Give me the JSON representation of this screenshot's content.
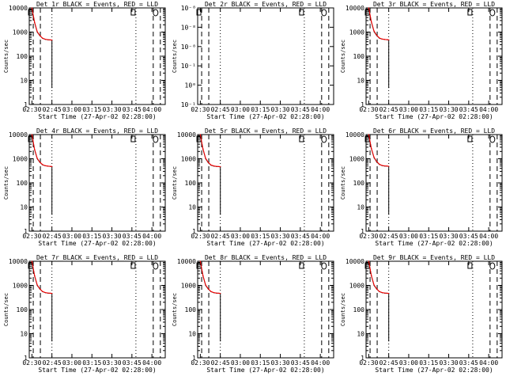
{
  "chart_data": [
    {
      "type": "line",
      "title": "Det 1r BLACK = Events, RED = LLD",
      "xlabel": "Start Time (27-Apr-02 02:28:00)",
      "ylabel": "Counts/sec",
      "x_tick_labels": [
        "02:30",
        "02:45",
        "03:00",
        "03:15",
        "03:30",
        "03:45",
        "04:00"
      ],
      "y_tick_labels": [
        "1",
        "10",
        "100",
        "1000",
        "10000"
      ],
      "y_scale": "log",
      "ylim": [
        1,
        10000
      ],
      "xlim": [
        "02:28",
        "04:10"
      ],
      "series": [
        {
          "name": "BLACK = Events",
          "color": "#000000",
          "x": [
            "02:30",
            "02:32",
            "02:34",
            "02:36",
            "02:38",
            "02:40",
            "02:42",
            "02:44",
            "02:45",
            "02:45"
          ],
          "y": [
            10000,
            2500,
            1000,
            700,
            550,
            500,
            480,
            470,
            460,
            5
          ]
        },
        {
          "name": "RED = LLD",
          "color": "#ff0000",
          "x": [
            "02:30",
            "02:32",
            "02:34",
            "02:36",
            "02:38",
            "02:40",
            "02:42",
            "02:44",
            "02:45"
          ],
          "y": [
            10000,
            2600,
            1050,
            720,
            560,
            505,
            485,
            475,
            465
          ]
        }
      ],
      "markers": [
        "02:31",
        "02:45",
        "03:48",
        "04:01"
      ]
    },
    {
      "type": "line",
      "title": "Det 2r BLACK = Events, RED = LLD",
      "xlabel": "Start Time (27-Apr-02 02:28:00)",
      "ylabel": "Counts/sec",
      "x_tick_labels": [
        "02:30",
        "02:45",
        "03:00",
        "03:15",
        "03:30",
        "03:45",
        "04:00"
      ],
      "y_tick_labels": [
        "10⁻¹",
        "10⁰",
        "10⁻¹",
        "10⁻⁸",
        "10⁻⁸",
        "10⁻⁸"
      ],
      "y_scale": "log",
      "xlim": [
        "02:28",
        "04:10"
      ],
      "series": [],
      "markers": [
        "02:31",
        "02:45",
        "03:48",
        "04:01"
      ]
    },
    {
      "type": "line",
      "title": "Det 3r BLACK = Events, RED = LLD",
      "xlabel": "Start Time (27-Apr-02 02:28:00)",
      "ylabel": "Counts/sec",
      "x_tick_labels": [
        "02:30",
        "02:45",
        "03:00",
        "03:15",
        "03:30",
        "03:45",
        "04:00"
      ],
      "y_tick_labels": [
        "1",
        "10",
        "100",
        "1000",
        "10000"
      ],
      "y_scale": "log",
      "ylim": [
        1,
        10000
      ],
      "xlim": [
        "02:28",
        "04:10"
      ],
      "series": [
        {
          "name": "BLACK = Events",
          "color": "#000000",
          "x": [
            "02:30",
            "02:32",
            "02:34",
            "02:36",
            "02:38",
            "02:40",
            "02:42",
            "02:44",
            "02:45",
            "02:45"
          ],
          "y": [
            10000,
            2600,
            1050,
            720,
            560,
            510,
            490,
            480,
            470,
            5
          ]
        },
        {
          "name": "RED = LLD",
          "color": "#ff0000",
          "x": [
            "02:30",
            "02:32",
            "02:34",
            "02:36",
            "02:38",
            "02:40",
            "02:42",
            "02:44",
            "02:45"
          ],
          "y": [
            10000,
            2700,
            1100,
            740,
            570,
            515,
            495,
            485,
            475
          ]
        }
      ],
      "markers": [
        "02:31",
        "02:45",
        "03:48",
        "04:01"
      ]
    },
    {
      "type": "line",
      "title": "Det 4r BLACK = Events, RED = LLD",
      "xlabel": "Start Time (27-Apr-02 02:28:00)",
      "ylabel": "Counts/sec",
      "x_tick_labels": [
        "02:30",
        "02:45",
        "03:00",
        "03:15",
        "03:30",
        "03:45",
        "04:00"
      ],
      "y_tick_labels": [
        "1",
        "10",
        "100",
        "1000",
        "10000"
      ],
      "y_scale": "log",
      "ylim": [
        1,
        10000
      ],
      "xlim": [
        "02:28",
        "04:10"
      ],
      "series": [
        {
          "name": "BLACK = Events",
          "color": "#000000",
          "x": [
            "02:30",
            "02:32",
            "02:34",
            "02:36",
            "02:38",
            "02:40",
            "02:42",
            "02:44",
            "02:45",
            "02:45"
          ],
          "y": [
            10000,
            2400,
            1000,
            700,
            560,
            510,
            490,
            480,
            470,
            5
          ]
        },
        {
          "name": "RED = LLD",
          "color": "#ff0000",
          "x": [
            "02:30",
            "02:32",
            "02:34",
            "02:36",
            "02:38",
            "02:40",
            "02:42",
            "02:44",
            "02:45"
          ],
          "y": [
            10000,
            2500,
            1050,
            720,
            570,
            515,
            495,
            485,
            475
          ]
        }
      ],
      "markers": [
        "02:31",
        "02:45",
        "03:48",
        "04:01"
      ]
    },
    {
      "type": "line",
      "title": "Det 5r BLACK = Events, RED = LLD",
      "xlabel": "Start Time (27-Apr-02 02:28:00)",
      "ylabel": "Counts/sec",
      "x_tick_labels": [
        "02:30",
        "02:45",
        "03:00",
        "03:15",
        "03:30",
        "03:45",
        "04:00"
      ],
      "y_tick_labels": [
        "1",
        "10",
        "100",
        "1000",
        "10000"
      ],
      "y_scale": "log",
      "ylim": [
        1,
        10000
      ],
      "xlim": [
        "02:28",
        "04:10"
      ],
      "series": [
        {
          "name": "BLACK = Events",
          "color": "#000000",
          "x": [
            "02:30",
            "02:32",
            "02:34",
            "02:36",
            "02:38",
            "02:40",
            "02:42",
            "02:44",
            "02:45",
            "02:45"
          ],
          "y": [
            10000,
            2500,
            1000,
            680,
            540,
            500,
            480,
            470,
            460,
            5
          ]
        },
        {
          "name": "RED = LLD",
          "color": "#ff0000",
          "x": [
            "02:30",
            "02:32",
            "02:34",
            "02:36",
            "02:38",
            "02:40",
            "02:42",
            "02:44",
            "02:45"
          ],
          "y": [
            10000,
            2600,
            1050,
            700,
            550,
            505,
            485,
            475,
            465
          ]
        }
      ],
      "markers": [
        "02:31",
        "02:45",
        "03:48",
        "04:01"
      ]
    },
    {
      "type": "line",
      "title": "Det 6r BLACK = Events, RED = LLD",
      "xlabel": "Start Time (27-Apr-02 02:28:00)",
      "ylabel": "Counts/sec",
      "x_tick_labels": [
        "02:30",
        "02:45",
        "03:00",
        "03:15",
        "03:30",
        "03:45",
        "04:00"
      ],
      "y_tick_labels": [
        "1",
        "10",
        "100",
        "1000",
        "10000"
      ],
      "y_scale": "log",
      "ylim": [
        1,
        10000
      ],
      "xlim": [
        "02:28",
        "04:10"
      ],
      "series": [
        {
          "name": "BLACK = Events",
          "color": "#000000",
          "x": [
            "02:30",
            "02:32",
            "02:34",
            "02:36",
            "02:38",
            "02:40",
            "02:42",
            "02:44",
            "02:45",
            "02:45"
          ],
          "y": [
            10000,
            2600,
            1100,
            740,
            580,
            520,
            500,
            490,
            480,
            5
          ]
        },
        {
          "name": "RED = LLD",
          "color": "#ff0000",
          "x": [
            "02:30",
            "02:32",
            "02:34",
            "02:36",
            "02:38",
            "02:40",
            "02:42",
            "02:44",
            "02:45"
          ],
          "y": [
            10000,
            2700,
            1150,
            760,
            590,
            525,
            505,
            495,
            485
          ]
        }
      ],
      "markers": [
        "02:31",
        "02:45",
        "03:48",
        "04:01"
      ]
    },
    {
      "type": "line",
      "title": "Det 7r BLACK = Events, RED = LLD",
      "xlabel": "Start Time (27-Apr-02 02:28:00)",
      "ylabel": "Counts/sec",
      "x_tick_labels": [
        "02:30",
        "02:45",
        "03:00",
        "03:15",
        "03:30",
        "03:45",
        "04:00"
      ],
      "y_tick_labels": [
        "1",
        "10",
        "100",
        "1000",
        "10000"
      ],
      "y_scale": "log",
      "ylim": [
        1,
        10000
      ],
      "xlim": [
        "02:28",
        "04:10"
      ],
      "series": [
        {
          "name": "BLACK = Events",
          "color": "#000000",
          "x": [
            "02:30",
            "02:32",
            "02:34",
            "02:36",
            "02:38",
            "02:40",
            "02:42",
            "02:44",
            "02:45",
            "02:45"
          ],
          "y": [
            10000,
            2500,
            1000,
            700,
            550,
            500,
            480,
            470,
            460,
            5
          ]
        },
        {
          "name": "RED = LLD",
          "color": "#ff0000",
          "x": [
            "02:30",
            "02:32",
            "02:34",
            "02:36",
            "02:38",
            "02:40",
            "02:42",
            "02:44",
            "02:45"
          ],
          "y": [
            10000,
            2600,
            1050,
            720,
            560,
            505,
            485,
            475,
            465
          ]
        }
      ],
      "markers": [
        "02:31",
        "02:45",
        "03:48",
        "04:01"
      ]
    },
    {
      "type": "line",
      "title": "Det 8r BLACK = Events, RED = LLD",
      "xlabel": "Start Time (27-Apr-02 02:28:00)",
      "ylabel": "Counts/sec",
      "x_tick_labels": [
        "02:30",
        "02:45",
        "03:00",
        "03:15",
        "03:30",
        "03:45",
        "04:00"
      ],
      "y_tick_labels": [
        "1",
        "10",
        "100",
        "1000",
        "10000"
      ],
      "y_scale": "log",
      "ylim": [
        1,
        10000
      ],
      "xlim": [
        "02:28",
        "04:10"
      ],
      "series": [
        {
          "name": "BLACK = Events",
          "color": "#000000",
          "x": [
            "02:30",
            "02:32",
            "02:34",
            "02:36",
            "02:38",
            "02:40",
            "02:42",
            "02:44",
            "02:45",
            "02:45"
          ],
          "y": [
            10000,
            2500,
            1000,
            700,
            550,
            500,
            480,
            470,
            460,
            5
          ]
        },
        {
          "name": "RED = LLD",
          "color": "#ff0000",
          "x": [
            "02:30",
            "02:32",
            "02:34",
            "02:36",
            "02:38",
            "02:40",
            "02:42",
            "02:44",
            "02:45"
          ],
          "y": [
            10000,
            2600,
            1050,
            720,
            560,
            505,
            485,
            475,
            465
          ]
        }
      ],
      "markers": [
        "02:31",
        "02:45",
        "03:48",
        "04:01"
      ]
    },
    {
      "type": "line",
      "title": "Det 9r BLACK = Events, RED = LLD",
      "xlabel": "Start Time (27-Apr-02 02:28:00)",
      "ylabel": "Counts/sec",
      "x_tick_labels": [
        "02:30",
        "02:45",
        "03:00",
        "03:15",
        "03:30",
        "03:45",
        "04:00"
      ],
      "y_tick_labels": [
        "1",
        "10",
        "100",
        "1000",
        "10000"
      ],
      "y_scale": "log",
      "ylim": [
        1,
        10000
      ],
      "xlim": [
        "02:28",
        "04:10"
      ],
      "series": [
        {
          "name": "BLACK = Events",
          "color": "#000000",
          "x": [
            "02:30",
            "02:32",
            "02:34",
            "02:36",
            "02:38",
            "02:40",
            "02:42",
            "02:44",
            "02:45",
            "02:45"
          ],
          "y": [
            10000,
            2500,
            1000,
            700,
            550,
            500,
            480,
            470,
            460,
            5
          ]
        },
        {
          "name": "RED = LLD",
          "color": "#ff0000",
          "x": [
            "02:30",
            "02:32",
            "02:34",
            "02:36",
            "02:38",
            "02:40",
            "02:42",
            "02:44",
            "02:45"
          ],
          "y": [
            10000,
            2600,
            1050,
            720,
            560,
            505,
            485,
            475,
            465
          ]
        }
      ],
      "markers": [
        "02:31",
        "02:45",
        "03:48",
        "04:01"
      ]
    }
  ]
}
